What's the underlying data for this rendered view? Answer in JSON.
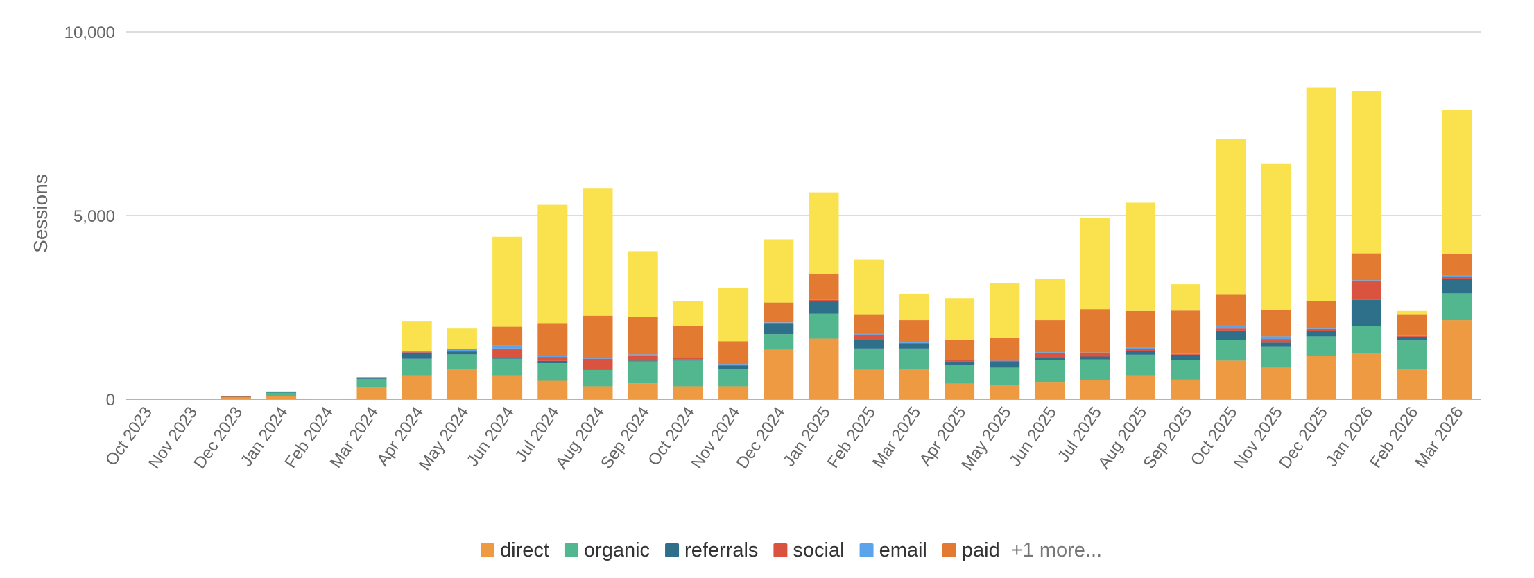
{
  "chart_data": {
    "type": "bar",
    "stacked": true,
    "ylabel": "Sessions",
    "ylim": [
      0,
      10000
    ],
    "yticks": [
      0,
      5000,
      10000
    ],
    "ytick_labels": [
      "0",
      "5,000",
      "10,000"
    ],
    "grid": true,
    "legend_position": "bottom-center",
    "legend_more_label": "+1 more...",
    "categories": [
      "Oct 2023",
      "Nov 2023",
      "Dec 2023",
      "Jan 2024",
      "Feb 2024",
      "Mar 2024",
      "Apr 2024",
      "May 2024",
      "Jun 2024",
      "Jul 2024",
      "Aug 2024",
      "Sep 2024",
      "Oct 2024",
      "Nov 2024",
      "Dec 2024",
      "Jan 2025",
      "Feb 2025",
      "Mar 2025",
      "Apr 2025",
      "May 2025",
      "Jun 2025",
      "Jul 2025",
      "Aug 2025",
      "Sep 2025",
      "Oct 2025",
      "Nov 2025",
      "Dec 2025",
      "Jan 2026",
      "Feb 2026",
      "Mar 2026"
    ],
    "series": [
      {
        "name": "direct",
        "color": "#ed9a42",
        "in_legend": true,
        "values": [
          0,
          10,
          50,
          80,
          5,
          320,
          650,
          820,
          650,
          500,
          350,
          430,
          350,
          350,
          1350,
          1650,
          800,
          820,
          420,
          380,
          470,
          520,
          650,
          530,
          1050,
          860,
          1180,
          1250,
          830,
          2150
        ]
      },
      {
        "name": "organic",
        "color": "#52b78f",
        "in_legend": true,
        "values": [
          0,
          0,
          10,
          100,
          10,
          230,
          450,
          400,
          450,
          480,
          450,
          600,
          700,
          470,
          420,
          680,
          580,
          560,
          520,
          480,
          590,
          560,
          560,
          530,
          570,
          580,
          530,
          750,
          770,
          730
        ]
      },
      {
        "name": "referrals",
        "color": "#2e6f8a",
        "in_legend": true,
        "values": [
          0,
          0,
          10,
          30,
          0,
          20,
          150,
          80,
          40,
          60,
          20,
          20,
          30,
          100,
          270,
          330,
          230,
          120,
          80,
          150,
          80,
          80,
          100,
          150,
          250,
          100,
          140,
          700,
          100,
          400
        ]
      },
      {
        "name": "social",
        "color": "#d9533f",
        "in_legend": true,
        "values": [
          0,
          0,
          5,
          0,
          0,
          20,
          30,
          20,
          240,
          110,
          280,
          140,
          40,
          10,
          40,
          40,
          150,
          30,
          40,
          40,
          120,
          90,
          60,
          20,
          70,
          100,
          60,
          520,
          20,
          50
        ]
      },
      {
        "name": "email",
        "color": "#5ba3ea",
        "in_legend": true,
        "values": [
          0,
          0,
          0,
          0,
          0,
          0,
          10,
          20,
          90,
          20,
          20,
          30,
          10,
          30,
          10,
          30,
          40,
          20,
          10,
          20,
          20,
          20,
          30,
          20,
          70,
          70,
          30,
          20,
          30,
          40
        ]
      },
      {
        "name": "paid",
        "color": "#e37a31",
        "in_legend": true,
        "values": [
          0,
          0,
          5,
          0,
          0,
          10,
          30,
          20,
          500,
          900,
          1150,
          1020,
          860,
          620,
          540,
          670,
          510,
          600,
          540,
          600,
          870,
          1180,
          1000,
          1160,
          850,
          710,
          730,
          730,
          560,
          580
        ]
      },
      {
        "name": "",
        "color": "#f9e24d",
        "in_legend": false,
        "values": [
          0,
          0,
          0,
          0,
          0,
          0,
          810,
          580,
          2450,
          3220,
          3480,
          1790,
          680,
          1450,
          1720,
          2230,
          1490,
          720,
          1140,
          1490,
          1120,
          2480,
          2950,
          720,
          4220,
          4000,
          5810,
          4420,
          90,
          3920
        ]
      }
    ]
  }
}
